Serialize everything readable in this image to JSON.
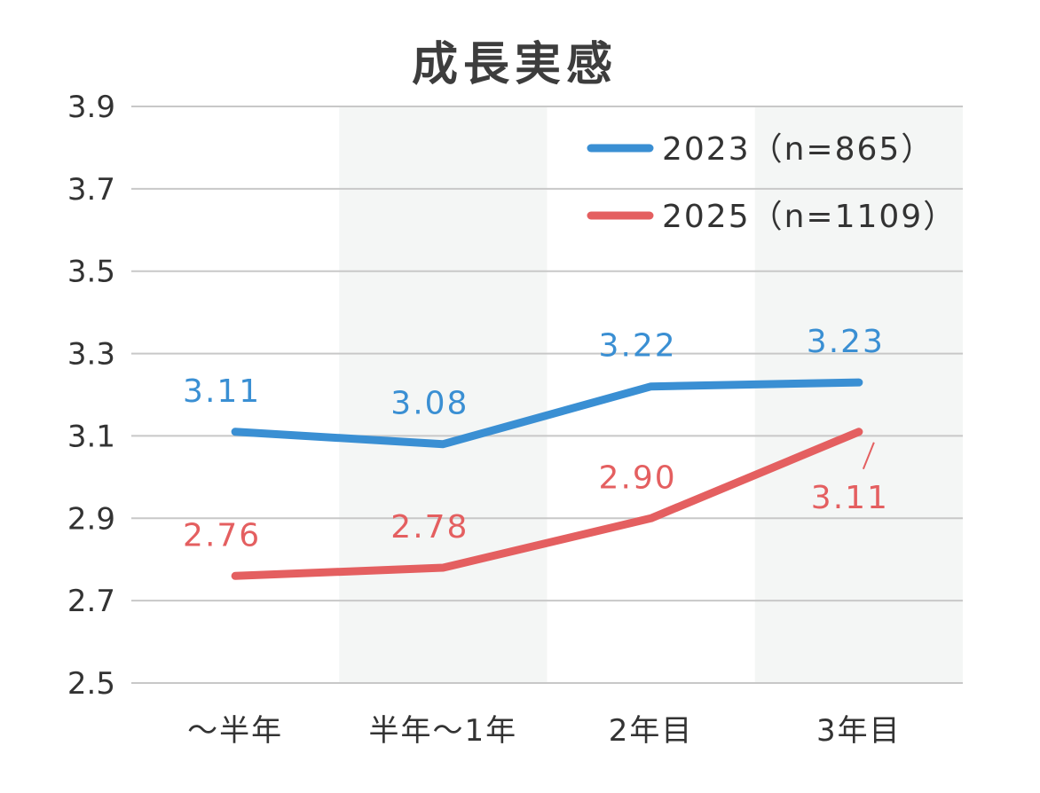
{
  "chart_data": {
    "type": "line",
    "title": "成長実感",
    "xlabel": "",
    "ylabel": "",
    "categories": [
      "〜半年",
      "半年〜1年",
      "2年目",
      "3年目"
    ],
    "ylim": [
      2.5,
      3.9
    ],
    "yticks": [
      "3.9",
      "3.7",
      "3.5",
      "3.3",
      "3.1",
      "2.9",
      "2.7",
      "2.5"
    ],
    "grid": true,
    "legend_position": "top-right",
    "series": [
      {
        "name": "2023（n=865）",
        "color": "#3a8fd3",
        "values": [
          3.11,
          3.08,
          3.22,
          3.23
        ],
        "labels": [
          "3.11",
          "3.08",
          "3.22",
          "3.23"
        ]
      },
      {
        "name": "2025（n=1109）",
        "color": "#e45f60",
        "values": [
          2.76,
          2.78,
          2.9,
          3.11
        ],
        "labels": [
          "2.76",
          "2.78",
          "2.90",
          "3.11"
        ]
      }
    ]
  }
}
